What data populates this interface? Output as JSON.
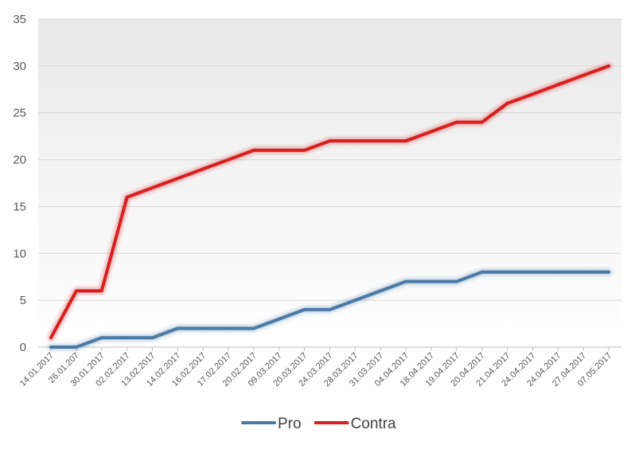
{
  "chart_data": {
    "type": "line",
    "title": "",
    "xlabel": "",
    "ylabel": "",
    "ylim": [
      0,
      35
    ],
    "yticks": [
      0,
      5,
      10,
      15,
      20,
      25,
      30,
      35
    ],
    "grid": true,
    "legend_position": "bottom",
    "categories": [
      "14.01.2017",
      "26.01.207",
      "30.01.2017",
      "02.02.2017",
      "13.02.2017",
      "14.02.2017",
      "16.02.2017",
      "17.02.2017",
      "20.02.2017",
      "09.03.2017",
      "20.03.2017",
      "24.03.2017",
      "28.03.2017",
      "31.03.2017",
      "04.04.2017",
      "18.04.2017",
      "19.04.2017",
      "20.04.2017",
      "21.04.2017",
      "24.04.2017",
      "24.04.2017",
      "27.04.2017",
      "07.05.2017"
    ],
    "series": [
      {
        "name": "Pro",
        "color": "#4a7aa6",
        "values": [
          0,
          0,
          1,
          1,
          1,
          2,
          2,
          2,
          2,
          3,
          4,
          4,
          5,
          6,
          7,
          7,
          7,
          8,
          8,
          8,
          8,
          8,
          8
        ]
      },
      {
        "name": "Contra",
        "color": "#d81e1e",
        "values": [
          1,
          6,
          6,
          16,
          17,
          18,
          19,
          20,
          21,
          21,
          21,
          22,
          22,
          22,
          22,
          23,
          24,
          24,
          26,
          27,
          28,
          29,
          30
        ]
      }
    ]
  }
}
